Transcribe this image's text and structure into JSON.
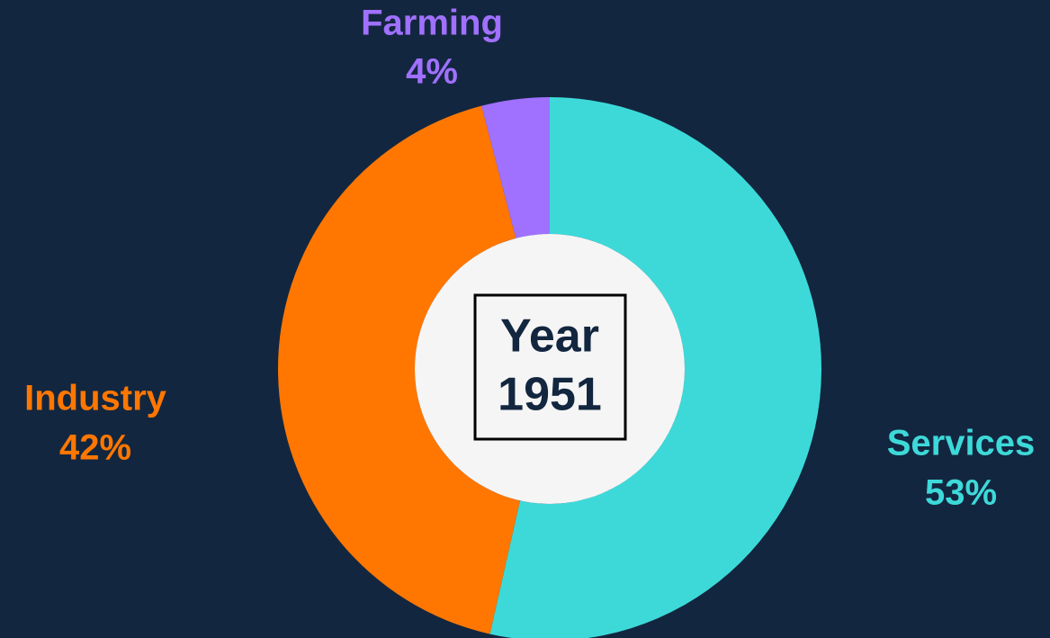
{
  "chart_data": {
    "type": "donut",
    "categories": [
      "Services",
      "Industry",
      "Farming"
    ],
    "values": [
      53,
      42,
      4
    ],
    "value_labels": [
      "53%",
      "42%",
      "4%"
    ],
    "colors": [
      "#3dd9d9",
      "#ff7700",
      "#a070ff"
    ],
    "center_label": [
      "Year",
      "1951"
    ]
  }
}
